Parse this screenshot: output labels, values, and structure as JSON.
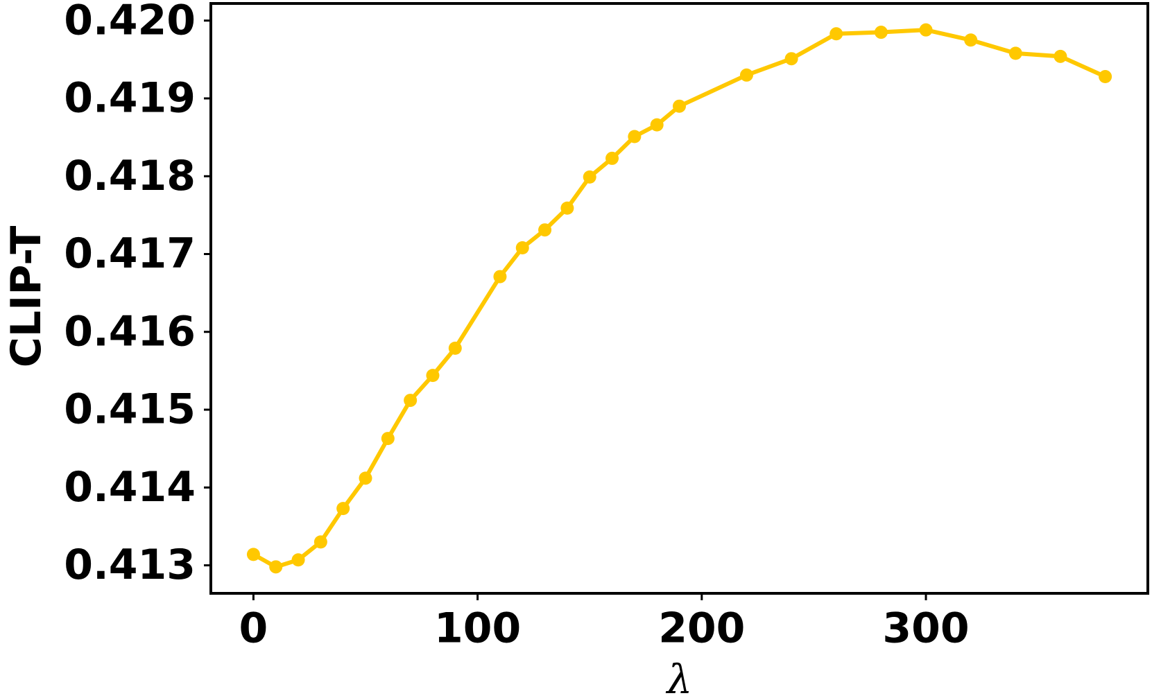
{
  "chart_data": {
    "type": "line",
    "xlabel": "λ",
    "ylabel": "CLIP-T",
    "x": [
      0,
      10,
      20,
      30,
      40,
      50,
      60,
      70,
      80,
      90,
      110,
      120,
      130,
      140,
      150,
      160,
      170,
      180,
      190,
      220,
      240,
      260,
      280,
      300,
      320,
      340,
      360,
      380
    ],
    "series": [
      {
        "color": "#ffc800",
        "values": [
          0.41314,
          0.41298,
          0.41307,
          0.4133,
          0.41373,
          0.41412,
          0.41463,
          0.41512,
          0.41544,
          0.41579,
          0.41671,
          0.41708,
          0.41731,
          0.41759,
          0.41799,
          0.41823,
          0.41851,
          0.41866,
          0.4189,
          0.4193,
          0.41951,
          0.41983,
          0.41985,
          0.41988,
          0.41975,
          0.41958,
          0.41954,
          0.41928
        ]
      }
    ],
    "xlim": [
      -19,
      399
    ],
    "xticks": [
      0,
      100,
      200,
      300
    ],
    "ylim": [
      0.41264,
      0.42022
    ],
    "yticks": [
      0.413,
      0.414,
      0.415,
      0.416,
      0.417,
      0.418,
      0.419,
      {
        "value": 0.42,
        "label": "0.420"
      }
    ],
    "grid": false
  }
}
